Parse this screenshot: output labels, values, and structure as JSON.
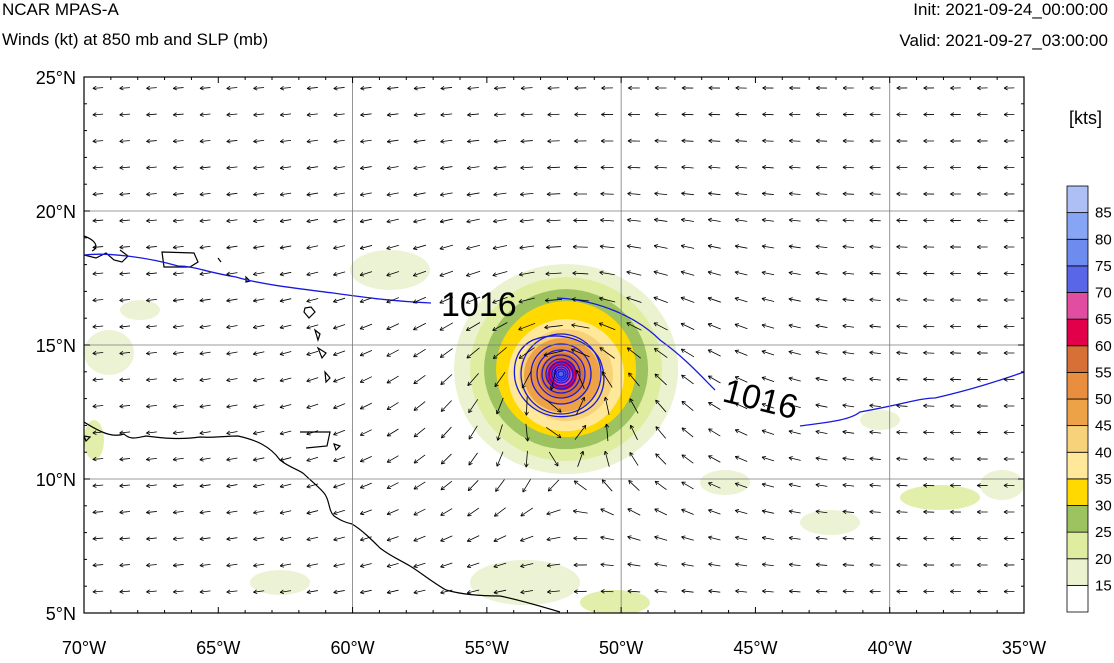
{
  "header": {
    "model": "NCAR MPAS-A",
    "field": "Winds (kt) at 850 mb and SLP (mb)",
    "init": "Init: 2021-09-24_00:00:00",
    "valid": "Valid: 2021-09-27_03:00:00"
  },
  "map": {
    "lon_range": [
      -70,
      -35
    ],
    "lat_range": [
      5,
      25
    ],
    "lon_ticks": [
      "70°W",
      "65°W",
      "60°W",
      "55°W",
      "50°W",
      "45°W",
      "40°W",
      "35°W"
    ],
    "lat_ticks": [
      "25°N",
      "20°N",
      "15°N",
      "10°N",
      "5°N"
    ],
    "grid": true,
    "storm_center": {
      "lon": -52.2,
      "lat": 13.8
    },
    "isobar_label": "1016",
    "isobar_color": "#1a1adc",
    "coastline_color": "#000000"
  },
  "colorbar": {
    "unit": "[kts]",
    "levels": [
      "15",
      "20",
      "25",
      "30",
      "35",
      "40",
      "45",
      "50",
      "55",
      "60",
      "65",
      "70",
      "75",
      "80",
      "85"
    ],
    "colors": [
      "#ffffff",
      "#eaf2cf",
      "#dfeda1",
      "#9cc35f",
      "#ffd900",
      "#ffe89a",
      "#f7d27a",
      "#eda247",
      "#e98e3f",
      "#d67036",
      "#e3004a",
      "#e14da1",
      "#5a66e8",
      "#6e8cf0",
      "#86a6f5",
      "#aebff6"
    ]
  }
}
